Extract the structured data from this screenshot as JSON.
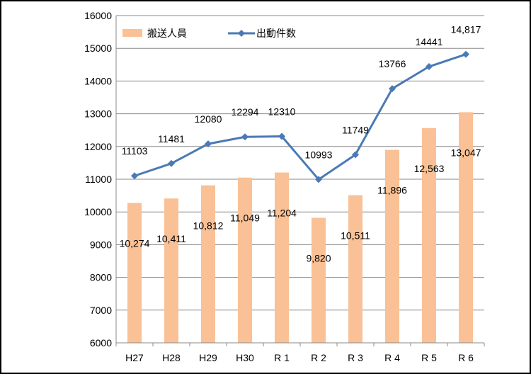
{
  "chart_data": {
    "type": "bar",
    "categories": [
      "H27",
      "H28",
      "H29",
      "H30",
      "R 1",
      "R 2",
      "R 3",
      "R 4",
      "R 5",
      "R 6"
    ],
    "ylim": [
      6000,
      16000
    ],
    "yticks": [
      "6000",
      "7000",
      "8000",
      "9000",
      "10000",
      "11000",
      "12000",
      "13000",
      "14000",
      "15000",
      "16000"
    ],
    "grid": true,
    "legend_position": "top-left",
    "series": [
      {
        "name": "搬送人員",
        "type": "bar",
        "color": "#f9c195",
        "values": [
          10274,
          10411,
          10812,
          11049,
          11204,
          9820,
          10511,
          11896,
          12563,
          13047
        ],
        "labels": [
          "10,274",
          "10,411",
          "10,812",
          "11,049",
          "11,204",
          "9,820",
          "10,511",
          "11,896",
          "12,563",
          "13,047"
        ]
      },
      {
        "name": "出動件数",
        "type": "line",
        "color": "#4a7ab5",
        "values": [
          11103,
          11481,
          12080,
          12294,
          12310,
          10993,
          11749,
          13766,
          14441,
          14817
        ],
        "labels": [
          "11103",
          "11481",
          "12080",
          "12294",
          "12310",
          "10993",
          "11749",
          "13766",
          "14441",
          "14,817"
        ]
      }
    ]
  }
}
